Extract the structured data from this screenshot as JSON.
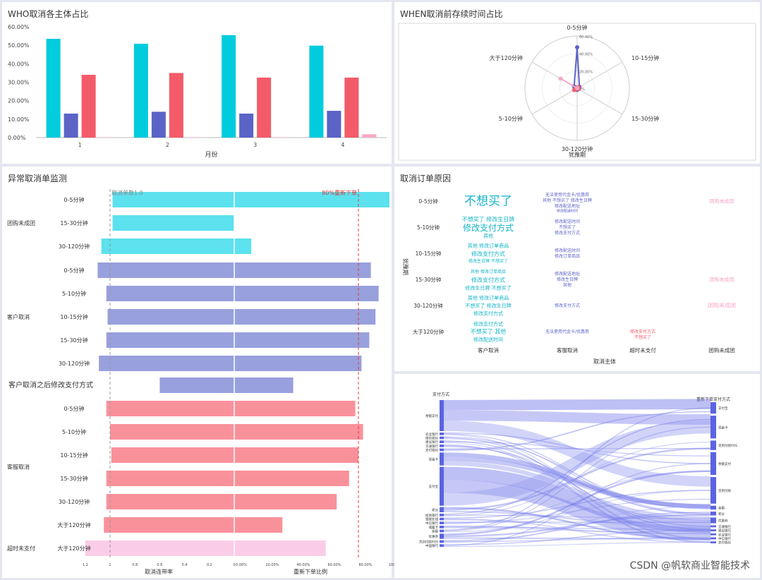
{
  "panels": {
    "who": {
      "title": "WHO取消各主体占比"
    },
    "when": {
      "title": "WHEN取消前存续时间占比"
    },
    "monitor": {
      "title": "异常取消单监测"
    },
    "reason": {
      "title": "取消订单原因"
    }
  },
  "chart_data": [
    {
      "id": "who",
      "type": "bar",
      "title": "WHO取消各主体占比",
      "xlabel": "月份",
      "ylabel": "",
      "categories": [
        "1",
        "2",
        "3",
        "4"
      ],
      "yticks": [
        "0.00%",
        "10.00%",
        "20.00%",
        "30.00%",
        "40.00%",
        "50.00%",
        "60.00%"
      ],
      "ylim": [
        0,
        60
      ],
      "series": [
        {
          "values": [
            53.5,
            50.8,
            55.5,
            49.8
          ],
          "color": "#00ccdd"
        },
        {
          "values": [
            13,
            14,
            13,
            14.5
          ],
          "color": "#5b63c7"
        },
        {
          "values": [
            34,
            35,
            32.5,
            32.5
          ],
          "color": "#f45b69"
        },
        {
          "values": [
            0.2,
            0.2,
            0.2,
            1.8
          ],
          "color": "#f7a7c8"
        }
      ]
    },
    {
      "id": "when",
      "type": "radar",
      "title": "WHEN取消前存续时间占比",
      "xlabel": "犹豫期",
      "axes": [
        "0-5分钟",
        "10-15分钟",
        "15-30分钟",
        "30-120分钟",
        "5-10分钟",
        "大于120分钟"
      ],
      "rticks": [
        "0%",
        "20.00%",
        "40.00%",
        "60.00%"
      ],
      "series": [
        {
          "values": [
            47,
            3,
            2,
            2,
            3,
            4
          ],
          "color": "#5b63c7"
        },
        {
          "values": [
            1,
            2,
            2,
            1,
            4,
            1
          ],
          "color": "#f45b69"
        },
        {
          "values": [
            0,
            0,
            0,
            0,
            0,
            22
          ],
          "color": "#f7a7c8"
        }
      ]
    },
    {
      "id": "monitor",
      "type": "bar",
      "title": "异常取消单监测",
      "left_axis": {
        "label": "取消连带率",
        "ticks": [
          "1.2",
          "1",
          "0.8",
          "0.6",
          "0.4",
          "0.2",
          "0"
        ]
      },
      "right_axis": {
        "label": "重新下单比例",
        "ticks": [
          "0.00%",
          "20.00%",
          "40.00%",
          "60.00%",
          "80.00%",
          "100.00%"
        ]
      },
      "reference_lines": [
        {
          "axis": "left",
          "value": 1,
          "label": "取消单数1.0"
        },
        {
          "axis": "right",
          "value": 80,
          "label": "80%重新下单"
        }
      ],
      "rows": [
        {
          "group": "团购未成团",
          "label": "0-5分钟",
          "left": 0.98,
          "right": 100,
          "color": "#5ce1ee"
        },
        {
          "group": "团购未成团",
          "label": "15-30分钟",
          "left": 0.98,
          "right": 0,
          "color": "#5ce1ee"
        },
        {
          "group": "团购未成团",
          "label": "30-120分钟",
          "left": 1.07,
          "right": 11,
          "color": "#5ce1ee"
        },
        {
          "group": "客户取消",
          "label": "0-5分钟",
          "left": 1.1,
          "right": 88,
          "color": "#98a0dd"
        },
        {
          "group": "客户取消",
          "label": "5-10分钟",
          "left": 1.03,
          "right": 93,
          "color": "#98a0dd"
        },
        {
          "group": "客户取消",
          "label": "10-15分钟",
          "left": 1.02,
          "right": 91,
          "color": "#98a0dd"
        },
        {
          "group": "客户取消",
          "label": "15-30分钟",
          "left": 1.03,
          "right": 87,
          "color": "#98a0dd"
        },
        {
          "group": "客户取消",
          "label": "30-120分钟",
          "left": 1.09,
          "right": 82,
          "color": "#98a0dd"
        },
        {
          "group": "",
          "label": "客户取消之后修改支付方式",
          "left": 0.6,
          "right": 38,
          "color": "#98a0dd"
        },
        {
          "group": "客服取消",
          "label": "0-5分钟",
          "left": 1.03,
          "right": 78,
          "color": "#f9919b"
        },
        {
          "group": "客服取消",
          "label": "5-10分钟",
          "left": 1,
          "right": 83,
          "color": "#f9919b"
        },
        {
          "group": "客服取消",
          "label": "10-15分钟",
          "left": 0.99,
          "right": 80,
          "color": "#f9919b"
        },
        {
          "group": "客服取消",
          "label": "15-30分钟",
          "left": 1.03,
          "right": 74,
          "color": "#f9919b"
        },
        {
          "group": "客服取消",
          "label": "30-120分钟",
          "left": 1.03,
          "right": 66,
          "color": "#f9919b"
        },
        {
          "group": "客服取消",
          "label": "大于120分钟",
          "left": 1.05,
          "right": 31,
          "color": "#f9919b"
        },
        {
          "group": "超时未支付",
          "label": "大于120分钟",
          "left": 1.2,
          "right": 59,
          "color": "#fbcce8"
        }
      ]
    },
    {
      "id": "reason",
      "type": "table",
      "title": "取消订单原因",
      "xlabel": "取消主体",
      "ylabel": "犹豫期",
      "columns": [
        "客户取消",
        "客服取消",
        "超时未支付",
        "团购未成团"
      ],
      "rows": [
        "0-5分钟",
        "5-10分钟",
        "10-15分钟",
        "15-30分钟",
        "30-120分钟",
        "大于120分钟"
      ],
      "words": [
        {
          "row": 0,
          "col": 0,
          "dx": 0,
          "dy": 0,
          "text": "不想买了",
          "size": 17,
          "color": "#12b5c7"
        },
        {
          "row": 0,
          "col": 1,
          "dx": 0,
          "dy": -9,
          "text": "无法使用代金卡/优惠券",
          "size": 6,
          "color": "#5b63c7"
        },
        {
          "row": 0,
          "col": 1,
          "dx": 0,
          "dy": -1,
          "text": "其他 不想买了 修改生日牌",
          "size": 6,
          "color": "#5b63c7"
        },
        {
          "row": 0,
          "col": 1,
          "dx": 0,
          "dy": 7,
          "text": "修改配送地址",
          "size": 6,
          "color": "#5b63c7"
        },
        {
          "row": 0,
          "col": 1,
          "dx": 0,
          "dy": 14,
          "text": "修改配送时间",
          "size": 5,
          "color": "#5b63c7"
        },
        {
          "row": 0,
          "col": 3,
          "dx": 0,
          "dy": 0,
          "text": "团购未成团",
          "size": 7,
          "color": "#f7a7c8"
        },
        {
          "row": 1,
          "col": 0,
          "dx": 0,
          "dy": -11,
          "text": "不想买了 修改生日牌",
          "size": 8,
          "color": "#12b5c7"
        },
        {
          "row": 1,
          "col": 0,
          "dx": 0,
          "dy": 1,
          "text": "修改支付方式",
          "size": 12,
          "color": "#12b5c7"
        },
        {
          "row": 1,
          "col": 0,
          "dx": 0,
          "dy": 12,
          "text": "其他",
          "size": 7,
          "color": "#12b5c7"
        },
        {
          "row": 1,
          "col": 1,
          "dx": 0,
          "dy": -8,
          "text": "修改配送时间",
          "size": 6,
          "color": "#5b63c7"
        },
        {
          "row": 1,
          "col": 1,
          "dx": 0,
          "dy": 0,
          "text": "不想买了",
          "size": 6,
          "color": "#5b63c7"
        },
        {
          "row": 1,
          "col": 1,
          "dx": 0,
          "dy": 8,
          "text": "修改支付方式",
          "size": 6,
          "color": "#5b63c7"
        },
        {
          "row": 2,
          "col": 0,
          "dx": 0,
          "dy": -11,
          "text": "其他 修改订单商品",
          "size": 7,
          "color": "#12b5c7"
        },
        {
          "row": 2,
          "col": 0,
          "dx": 0,
          "dy": 1,
          "text": "修改支付方式",
          "size": 8,
          "color": "#12b5c7"
        },
        {
          "row": 2,
          "col": 0,
          "dx": 0,
          "dy": 11,
          "text": "修改生日牌 不想买了",
          "size": 6,
          "color": "#12b5c7"
        },
        {
          "row": 2,
          "col": 1,
          "dx": 0,
          "dy": -4,
          "text": "修改配送时间",
          "size": 6,
          "color": "#5b63c7"
        },
        {
          "row": 2,
          "col": 1,
          "dx": 0,
          "dy": 4,
          "text": "修改订单商品",
          "size": 6,
          "color": "#5b63c7"
        },
        {
          "row": 3,
          "col": 0,
          "dx": 0,
          "dy": -11,
          "text": "其他 修改订单商品",
          "size": 6,
          "color": "#12b5c7"
        },
        {
          "row": 3,
          "col": 0,
          "dx": 0,
          "dy": 1,
          "text": "修改支付方式",
          "size": 8,
          "color": "#12b5c7"
        },
        {
          "row": 3,
          "col": 0,
          "dx": 0,
          "dy": 12,
          "text": "修改生日牌 不想买了",
          "size": 7,
          "color": "#12b5c7"
        },
        {
          "row": 3,
          "col": 1,
          "dx": 0,
          "dy": -8,
          "text": "修改配送地址",
          "size": 6,
          "color": "#5b63c7"
        },
        {
          "row": 3,
          "col": 1,
          "dx": 0,
          "dy": 0,
          "text": "修改生日牌",
          "size": 6,
          "color": "#5b63c7"
        },
        {
          "row": 3,
          "col": 1,
          "dx": 0,
          "dy": 8,
          "text": "其他",
          "size": 6,
          "color": "#5b63c7"
        },
        {
          "row": 3,
          "col": 3,
          "dx": 0,
          "dy": 0,
          "text": "团购未成团",
          "size": 7,
          "color": "#f7a7c8"
        },
        {
          "row": 4,
          "col": 0,
          "dx": 0,
          "dy": -11,
          "text": "其他 修改订单商品",
          "size": 7,
          "color": "#12b5c7"
        },
        {
          "row": 4,
          "col": 0,
          "dx": 0,
          "dy": 0,
          "text": "不想买了 修改生日牌",
          "size": 7,
          "color": "#12b5c7"
        },
        {
          "row": 4,
          "col": 0,
          "dx": 0,
          "dy": 11,
          "text": "修改支付方式",
          "size": 7,
          "color": "#12b5c7"
        },
        {
          "row": 4,
          "col": 1,
          "dx": 0,
          "dy": 0,
          "text": "修改支付方式",
          "size": 6,
          "color": "#5b63c7"
        },
        {
          "row": 4,
          "col": 3,
          "dx": 0,
          "dy": 0,
          "text": "团购未成团",
          "size": 8,
          "color": "#f7a7c8"
        },
        {
          "row": 5,
          "col": 0,
          "dx": 0,
          "dy": -11,
          "text": "修改支付方式",
          "size": 7,
          "color": "#12b5c7"
        },
        {
          "row": 5,
          "col": 0,
          "dx": 0,
          "dy": 0,
          "text": "不想买了 其他",
          "size": 8,
          "color": "#12b5c7"
        },
        {
          "row": 5,
          "col": 0,
          "dx": 0,
          "dy": 11,
          "text": "修改配送时间",
          "size": 7,
          "color": "#12b5c7"
        },
        {
          "row": 5,
          "col": 1,
          "dx": 0,
          "dy": 0,
          "text": "无法使用代金卡/优惠券",
          "size": 6,
          "color": "#5b63c7"
        },
        {
          "row": 5,
          "col": 2,
          "dx": 0,
          "dy": 0,
          "text": "修改支付方式",
          "size": 6,
          "color": "#f45b69"
        },
        {
          "row": 5,
          "col": 2,
          "dx": 0,
          "dy": 8,
          "text": "不想买了",
          "size": 6,
          "color": "#f45b69"
        }
      ]
    },
    {
      "id": "sankey",
      "type": "sankey",
      "left_title": "支付方式",
      "right_title": "重新下单支付方式",
      "left_nodes": [
        {
          "label": "余额支付",
          "value": 12
        },
        {
          "label": "农业银行",
          "value": 1
        },
        {
          "label": "微信钱包",
          "value": 1
        },
        {
          "label": "建设银行",
          "value": 1
        },
        {
          "label": "交通银行",
          "value": 1
        },
        {
          "label": "支付钱包",
          "value": 1
        },
        {
          "label": "现金卡",
          "value": 5
        },
        {
          "label": "支付宝",
          "value": 15
        },
        {
          "label": "积分",
          "value": 2
        },
        {
          "label": "招商银行",
          "value": 1
        },
        {
          "label": "银联在线",
          "value": 1
        },
        {
          "label": "中信银行",
          "value": 1
        },
        {
          "label": "储蓄卡",
          "value": 1
        },
        {
          "label": "余额",
          "value": 1
        },
        {
          "label": "优惠券",
          "value": 2
        },
        {
          "label": "货到付款POS",
          "value": 1
        },
        {
          "label": "中国银行",
          "value": 1
        }
      ],
      "right_nodes": [
        {
          "label": "支付宝",
          "value": 6
        },
        {
          "label": "现金卡",
          "value": 12
        },
        {
          "label": "货到付款POS",
          "value": 5
        },
        {
          "label": "余额支付",
          "value": 12
        },
        {
          "label": "货到付款",
          "value": 14
        },
        {
          "label": "余额",
          "value": 2
        },
        {
          "label": "积分",
          "value": 2
        },
        {
          "label": "优惠券",
          "value": 3
        },
        {
          "label": "交通银行",
          "value": 1
        },
        {
          "label": "建设银行",
          "value": 1
        },
        {
          "label": "农业银行",
          "value": 1
        },
        {
          "label": "中信银行",
          "value": 1
        },
        {
          "label": "支付钱包",
          "value": 1
        }
      ]
    }
  ],
  "watermark": "CSDN @帆软商业智能技术"
}
